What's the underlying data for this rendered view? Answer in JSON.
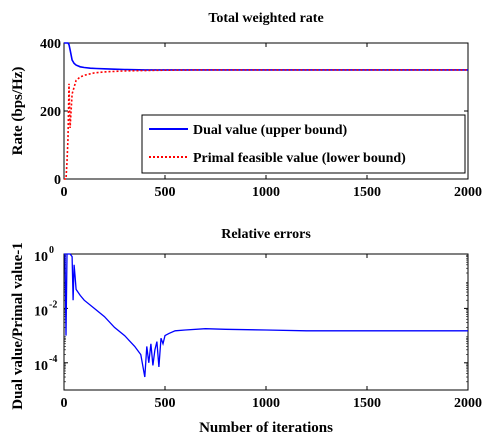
{
  "chart_data": [
    {
      "type": "line",
      "title": "Total weighted rate",
      "ylabel": "Rate (bps/Hz)",
      "xlabel": "",
      "xlim": [
        0,
        2000
      ],
      "ylim": [
        0,
        400
      ],
      "x_ticks": [
        "0",
        "500",
        "1000",
        "1500",
        "2000"
      ],
      "y_ticks": [
        "0",
        "200",
        "400"
      ],
      "grid": false,
      "legend_position": "bottom-right",
      "series": [
        {
          "name": "Dual value (upper bound)",
          "color": "#0000ff",
          "style": "solid",
          "x": [
            0,
            5,
            10,
            15,
            20,
            25,
            30,
            40,
            50,
            60,
            80,
            100,
            130,
            160,
            200,
            250,
            300,
            400,
            500,
            700,
            1000,
            1500,
            2000
          ],
          "y": [
            400,
            400,
            400,
            400,
            400,
            395,
            380,
            350,
            340,
            335,
            330,
            328,
            326,
            325,
            324,
            323,
            322,
            321,
            321,
            321,
            321,
            321,
            321
          ]
        },
        {
          "name": "Primal feasible value (lower bound)",
          "color": "#ff0000",
          "style": "dotted",
          "x": [
            0,
            10,
            15,
            20,
            25,
            30,
            40,
            50,
            60,
            70,
            80,
            100,
            120,
            150,
            200,
            300,
            500,
            700,
            1000,
            1500,
            2000
          ],
          "y": [
            0,
            0,
            50,
            120,
            280,
            150,
            250,
            270,
            290,
            295,
            300,
            305,
            308,
            312,
            315,
            318,
            320,
            321,
            321,
            321,
            321
          ]
        }
      ]
    },
    {
      "type": "line",
      "title": "Relative errors",
      "ylabel": "Dual value/Primal value-1",
      "xlabel": "Number of iterations",
      "xlim": [
        0,
        2000
      ],
      "ylim": [
        1e-05,
        1
      ],
      "yscale": "log",
      "x_ticks": [
        "0",
        "500",
        "1000",
        "1500",
        "2000"
      ],
      "y_tick_values": [
        1,
        0.01,
        0.0001
      ],
      "grid": false,
      "series": [
        {
          "color": "#0000ff",
          "x": [
            0,
            5,
            10,
            15,
            20,
            30,
            40,
            45,
            50,
            55,
            60,
            80,
            100,
            150,
            200,
            250,
            300,
            350,
            380,
            400,
            410,
            420,
            430,
            440,
            450,
            460,
            470,
            480,
            490,
            500,
            520,
            550,
            600,
            700,
            800,
            1000,
            1200,
            1500,
            1800,
            2000
          ],
          "y": [
            1,
            1,
            0.001,
            1,
            1,
            1,
            0.8,
            0.02,
            0.4,
            0.15,
            0.05,
            0.03,
            0.02,
            0.01,
            0.005,
            0.002,
            0.001,
            0.0004,
            0.0002,
            3e-05,
            0.0004,
            0.0001,
            0.0005,
            8e-05,
            0.0003,
            0.0006,
            7e-05,
            0.0008,
            0.0005,
            0.001,
            0.0012,
            0.0015,
            0.0016,
            0.0018,
            0.0017,
            0.0016,
            0.0015,
            0.0015,
            0.0015,
            0.0015
          ]
        }
      ]
    }
  ]
}
